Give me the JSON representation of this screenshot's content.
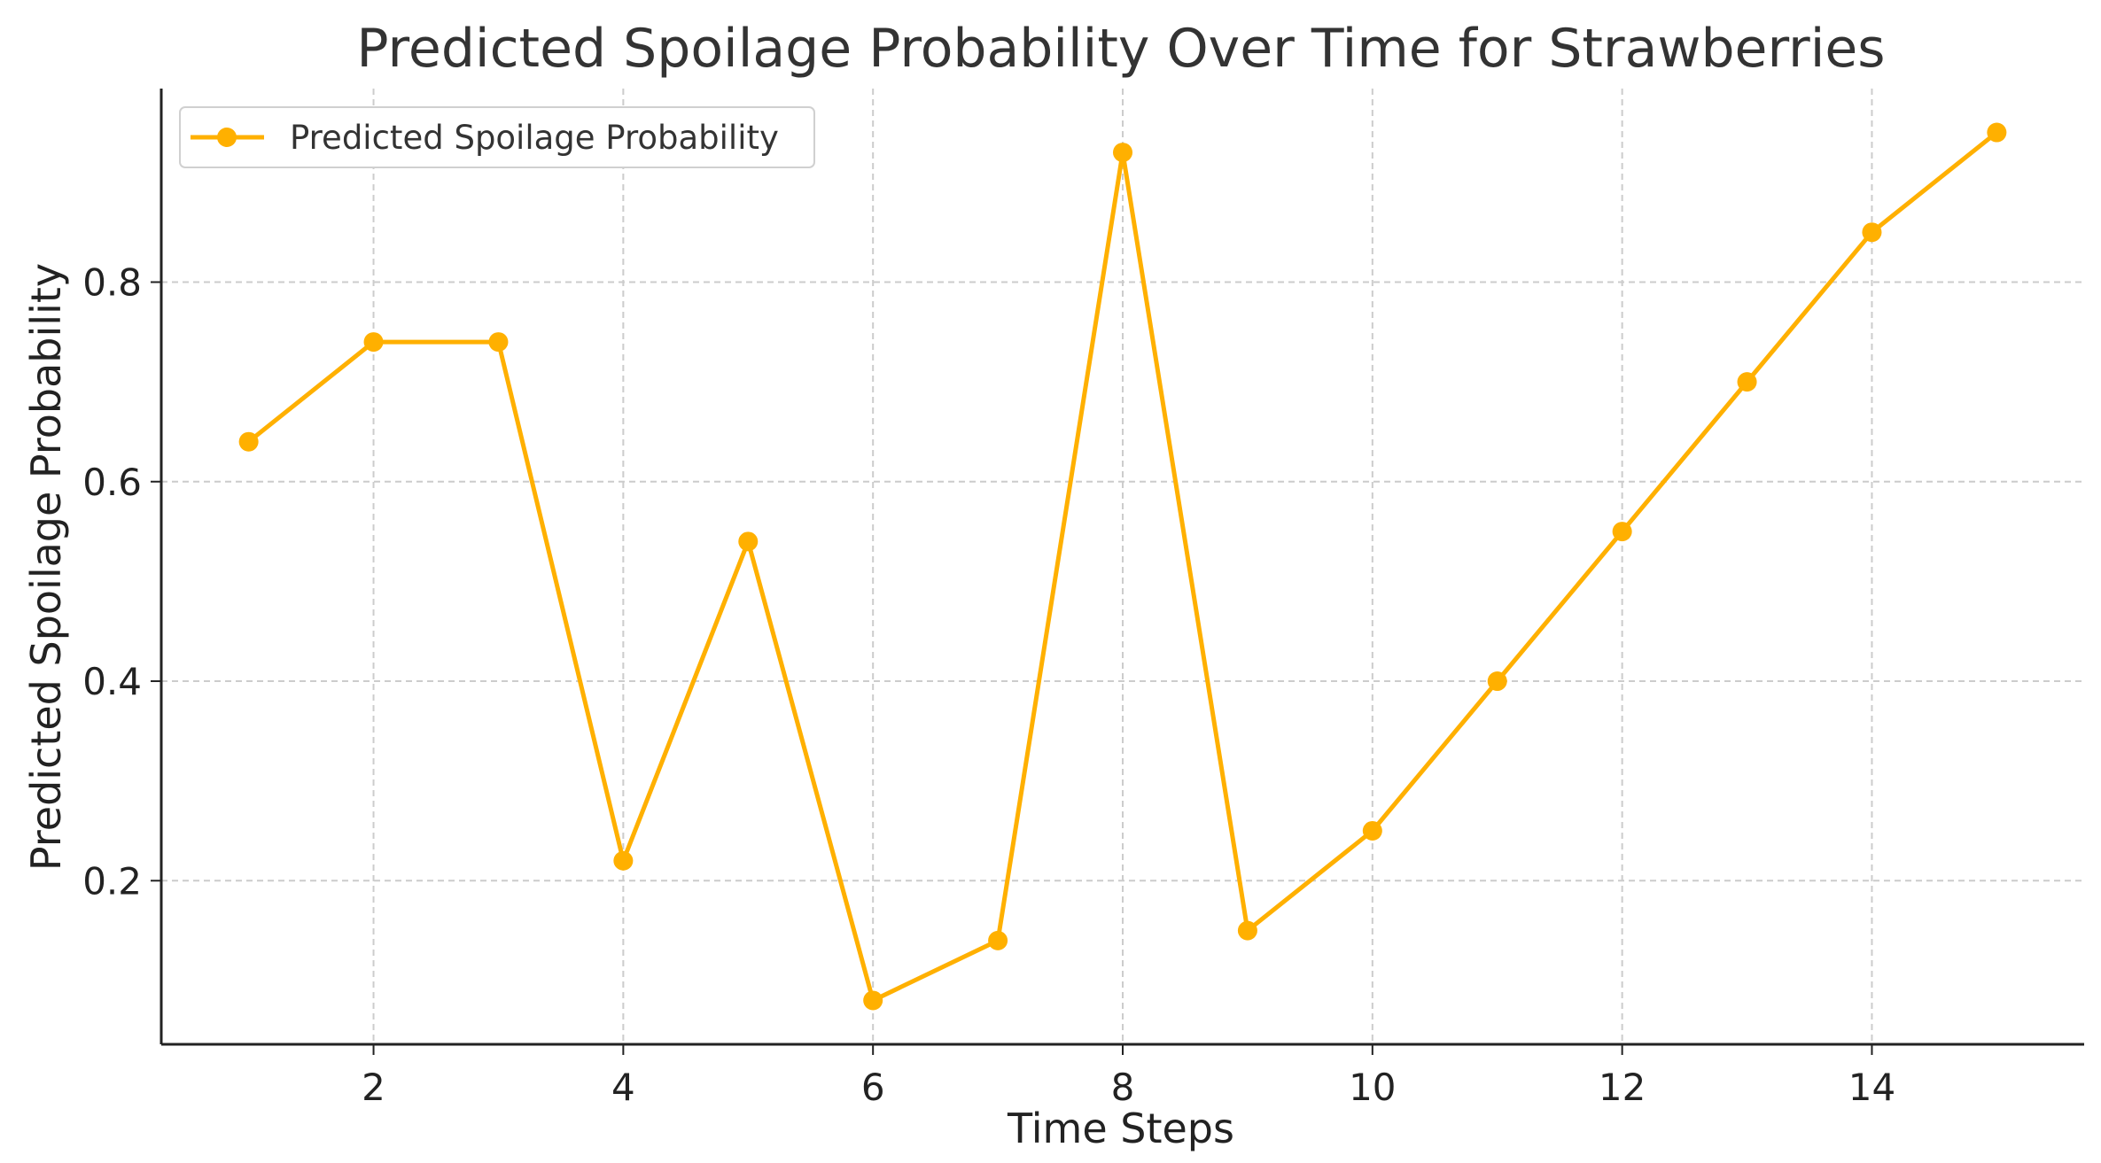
{
  "chart_data": {
    "type": "line",
    "title": "Predicted Spoilage Probability Over Time for Strawberries",
    "xlabel": "Time Steps",
    "ylabel": "Predicted Spoilage Probability",
    "x": [
      1,
      2,
      3,
      4,
      5,
      6,
      7,
      8,
      9,
      10,
      11,
      12,
      13,
      14,
      15
    ],
    "series": [
      {
        "name": "Predicted Spoilage Probability",
        "values": [
          0.64,
          0.74,
          0.74,
          0.22,
          0.54,
          0.08,
          0.14,
          0.93,
          0.15,
          0.25,
          0.4,
          0.55,
          0.7,
          0.85,
          0.95
        ]
      }
    ],
    "xticks": [
      2,
      4,
      6,
      8,
      10,
      12,
      14
    ],
    "xtick_labels": [
      "2",
      "4",
      "6",
      "8",
      "10",
      "12",
      14
    ],
    "yticks": [
      0.2,
      0.4,
      0.6,
      0.8
    ],
    "ytick_labels": [
      "0.2",
      "0.4",
      "0.6",
      "0.8"
    ],
    "xlim": [
      0.3,
      15.7
    ],
    "ylim": [
      0.036,
      0.994
    ],
    "grid": true,
    "legend_position": "top-left",
    "colors": {
      "series": "#FFB000",
      "grid": "#cccccc",
      "axis": "#222222",
      "legend_border": "#d0d0d0"
    }
  }
}
